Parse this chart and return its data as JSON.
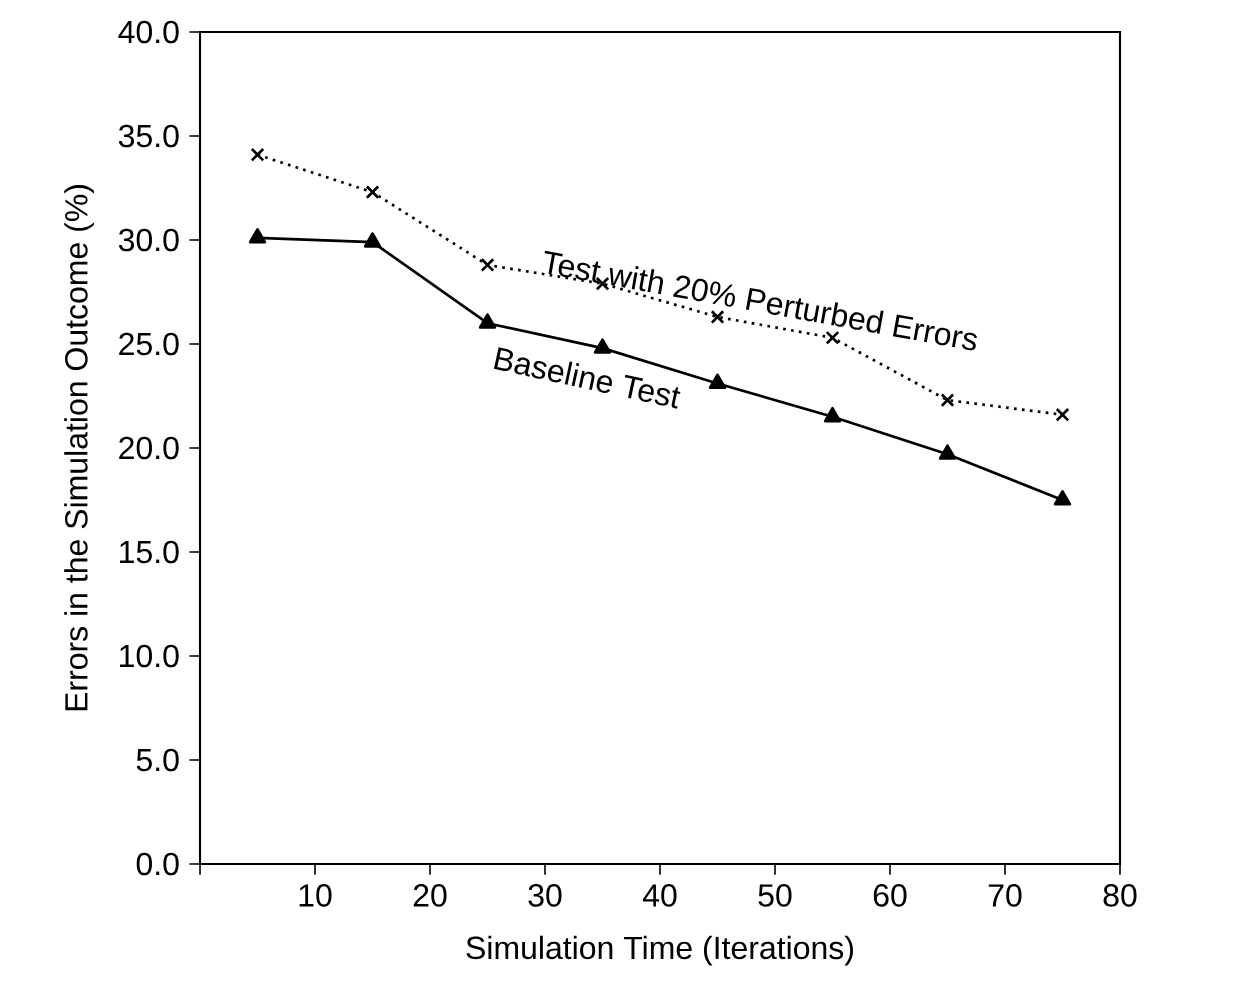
{
  "chart_data": {
    "type": "line",
    "xlabel": "Simulation Time (Iterations)",
    "ylabel": "Errors in the Simulation Outcome (%)",
    "x": [
      5,
      15,
      25,
      35,
      45,
      55,
      65,
      75
    ],
    "series": [
      {
        "name": "Test with 20% Perturbed Errors",
        "color": "#000000",
        "marker": "cross",
        "line_style": "dotted",
        "values": [
          34.1,
          32.3,
          28.8,
          27.9,
          26.3,
          25.3,
          22.3,
          21.6
        ]
      },
      {
        "name": "Baseline Test",
        "color": "#000000",
        "marker": "triangle",
        "line_style": "solid",
        "values": [
          30.1,
          29.9,
          26.0,
          24.8,
          23.1,
          21.5,
          19.7,
          17.5
        ]
      }
    ],
    "xlim": [
      0,
      80
    ],
    "xticks": [
      {
        "value": 0,
        "label": null
      },
      10,
      20,
      30,
      40,
      50,
      60,
      70,
      80
    ],
    "ylim": [
      0,
      40
    ],
    "yticks": [
      {
        "value": 0,
        "label": "0.0"
      },
      {
        "value": 5,
        "label": "5.0"
      },
      {
        "value": 10,
        "label": "10.0"
      },
      {
        "value": 15,
        "label": "15.0"
      },
      {
        "value": 20,
        "label": "20.0"
      },
      {
        "value": 25,
        "label": "25.0"
      },
      {
        "value": 30,
        "label": "30.0"
      },
      {
        "value": 35,
        "label": "35.0"
      },
      {
        "value": 40,
        "label": "40.0"
      }
    ]
  }
}
